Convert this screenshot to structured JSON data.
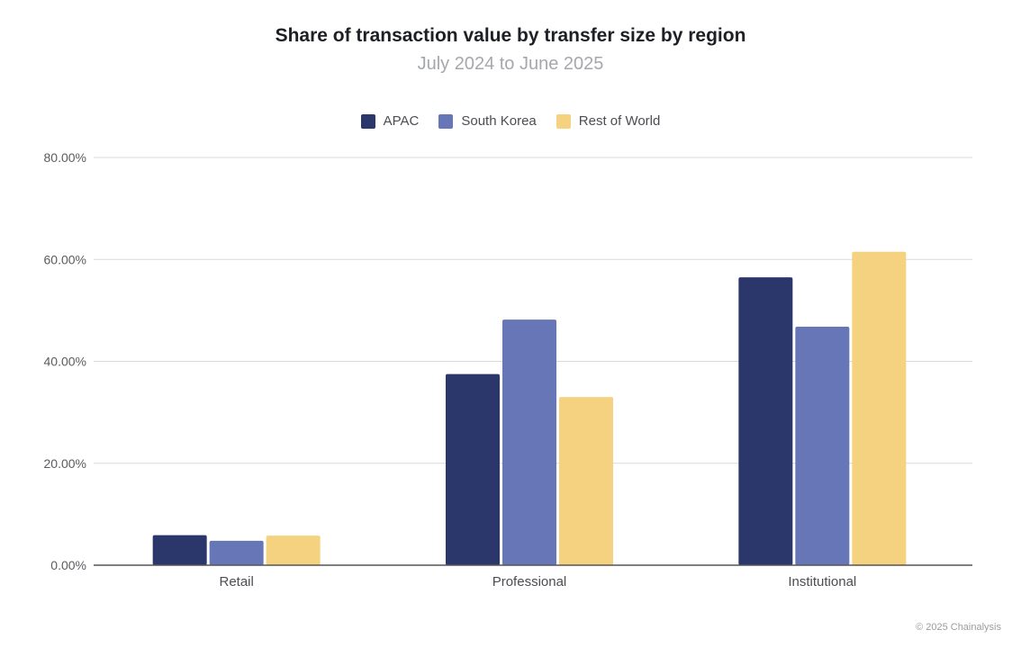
{
  "header": {
    "title": "Share of transaction value by transfer size by region",
    "subtitle": "July 2024 to June 2025"
  },
  "footer": {
    "copyright": "© 2025 Chainalysis"
  },
  "chart_data": {
    "type": "bar",
    "title": "Share of transaction value by transfer size by region",
    "subtitle": "July 2024 to June 2025",
    "categories": [
      "Retail",
      "Professional",
      "Institutional"
    ],
    "series": [
      {
        "name": "APAC",
        "color": "#2b376b",
        "values": [
          5.9,
          37.5,
          56.5
        ]
      },
      {
        "name": "South Korea",
        "color": "#6776b6",
        "values": [
          4.8,
          48.2,
          46.8
        ]
      },
      {
        "name": "Rest of World",
        "color": "#f5d27f",
        "values": [
          5.8,
          33.0,
          61.5
        ]
      }
    ],
    "ylim": [
      0,
      80
    ],
    "yticks": [
      "0.00%",
      "20.00%",
      "40.00%",
      "60.00%",
      "80.00%"
    ],
    "ytick_values": [
      0,
      20,
      40,
      60,
      80
    ],
    "grid": true,
    "legend_position": "top-center",
    "gridline_color": "#d9d9d9",
    "axis_color": "#555555"
  }
}
